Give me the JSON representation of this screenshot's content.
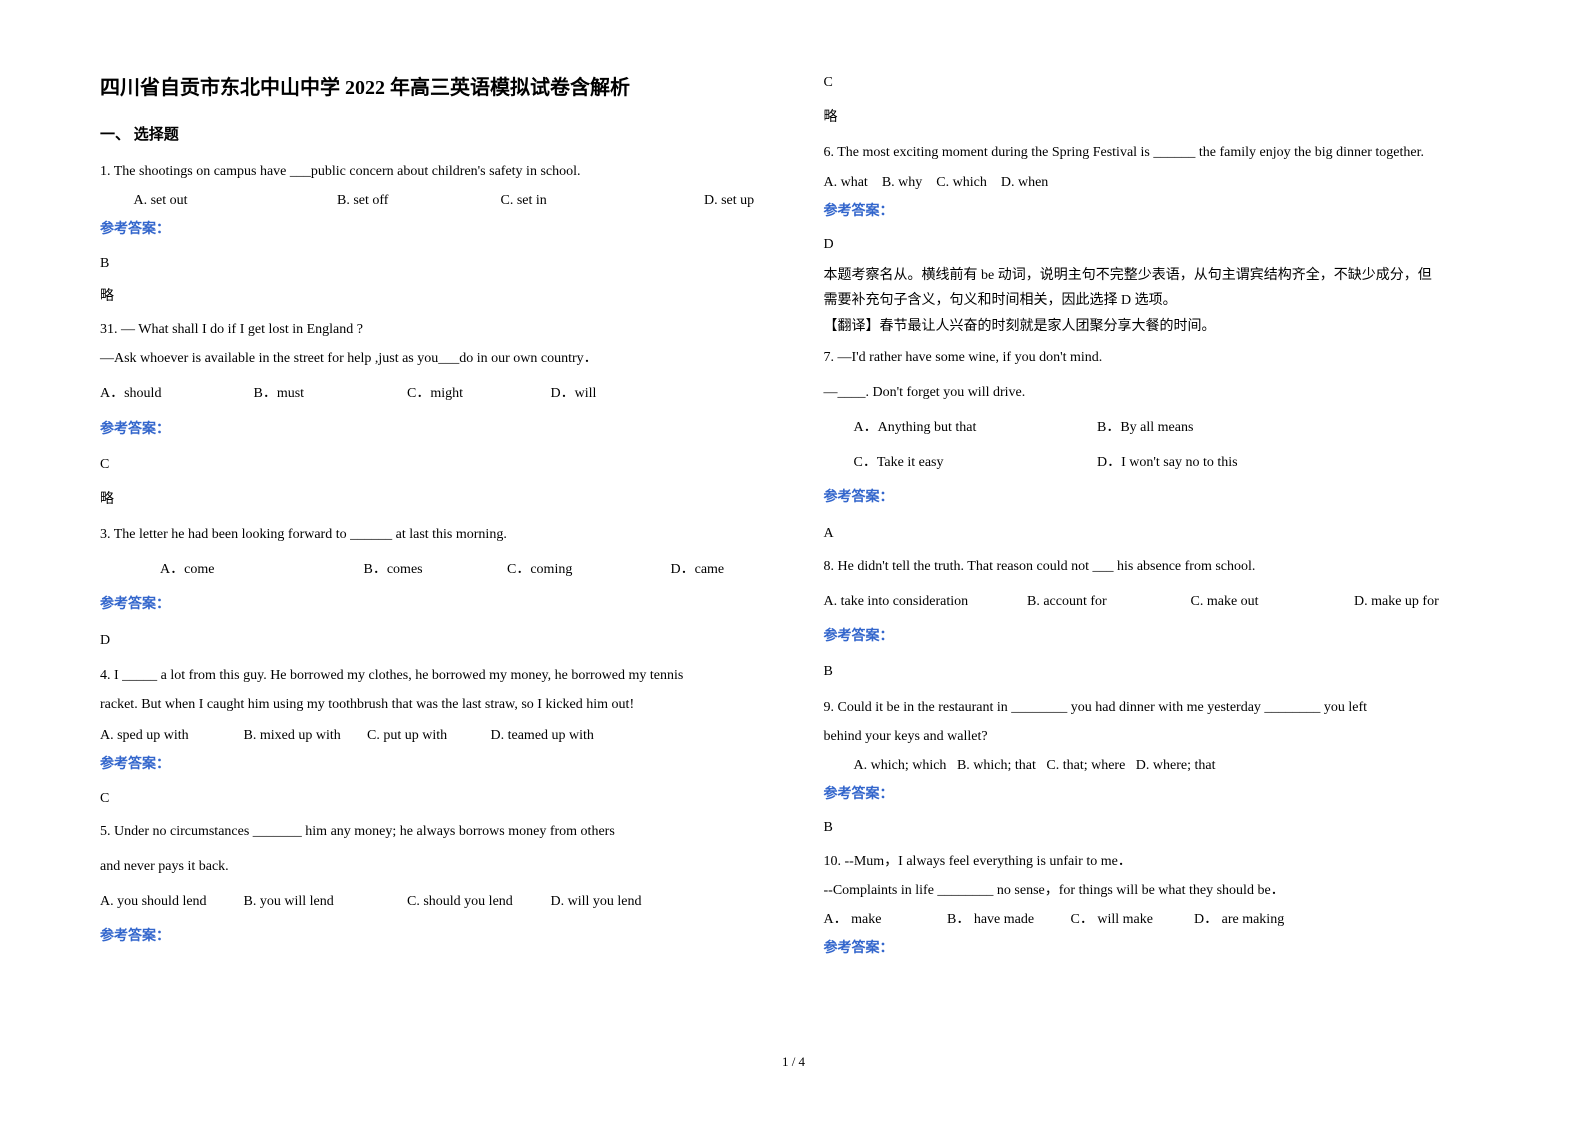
{
  "title": "四川省自贡市东北中山中学 2022 年高三英语模拟试卷含解析",
  "section_header": "一、 选择题",
  "footer": "1 / 4",
  "answer_label": "参考答案：",
  "left": {
    "q1": {
      "stem": "1. The shootings on campus have ___public concern about children's safety in school.",
      "opts": {
        "a": "A. set out",
        "b": "B. set off",
        "c": "C. set in",
        "d": "D. set up"
      },
      "ans": "B",
      "exp": "略"
    },
    "q2": {
      "num": "31.",
      "line1": "— What shall I do if I get lost in England ?",
      "line2": "—Ask whoever is available in the street for help ,just as you___do in our own country．",
      "opts": {
        "a": "A．should",
        "b": "B．must",
        "c": "C．might",
        "d": "D．will"
      },
      "ans": "C",
      "exp": "略"
    },
    "q3": {
      "stem": "3. The letter he had been looking forward to ______ at last this morning.",
      "opts": {
        "a": "A．come",
        "b": "B．comes",
        "c": "C．coming",
        "d": "D．came"
      },
      "ans": "D"
    },
    "q4": {
      "line1": "4. I _____ a lot from this guy. He borrowed my clothes, he borrowed my money, he borrowed my tennis",
      "line2": "racket. But when I caught him using my toothbrush that was the last straw, so I kicked him out!",
      "opts": {
        "a": "A. sped up with",
        "b": "B. mixed up with",
        "c": "C. put up with",
        "d": "D. teamed up with"
      },
      "ans": "C"
    },
    "q5": {
      "line1": "5. Under no circumstances _______ him any money; he always borrows money from others",
      "line2": "and never pays it back.",
      "opts": {
        "a": "A. you should lend",
        "b": "B. you will lend",
        "c": "C. should you lend",
        "d": "D. will you lend"
      }
    }
  },
  "right": {
    "top_ans": "C",
    "top_exp": "略",
    "q6": {
      "stem": "6. The most exciting moment during the Spring Festival is ______ the family enjoy the big dinner together.",
      "opts": {
        "a": "A. what",
        "b": "B. why",
        "c": "C. which",
        "d": "D. when"
      },
      "ans": "D",
      "exp1": "本题考察名从。横线前有 be 动词，说明主句不完整少表语，从句主谓宾结构齐全，不缺少成分，但",
      "exp2": "需要补充句子含义，句义和时间相关，因此选择 D 选项。",
      "exp3": "【翻译】春节最让人兴奋的时刻就是家人团聚分享大餐的时间。"
    },
    "q7": {
      "line1": "7. —I'd rather have some wine, if you don't mind.",
      "line2": "—____. Don't forget you will drive.",
      "opts": {
        "a": "A．Anything but that",
        "b": "B．By all means",
        "c": "C．Take it easy",
        "d": "D．I won't say no to this"
      },
      "ans": "A"
    },
    "q8": {
      "stem": "8. He didn't tell the truth. That reason could not ___ his absence from school.",
      "opts": {
        "a": "A. take into consideration",
        "b": "B. account for",
        "c": "C. make out",
        "d": "D. make up for"
      },
      "ans": "B"
    },
    "q9": {
      "line1": "9. Could it be in the restaurant in ________ you had dinner with me yesterday ________ you left",
      "line2": "behind your keys and wallet?",
      "opts": {
        "a": "A. which; which",
        "b": "B. which; that",
        "c": "C. that; where",
        "d": "D. where; that"
      },
      "ans": "B"
    },
    "q10": {
      "line1": "10. --Mum，I always feel everything is unfair to me．",
      "line2": "--Complaints in life ________ no sense，for things will be what they should be．",
      "opts": {
        "a": "A． make",
        "b": "B． have made",
        "c": "C． will make",
        "d": "D． are making"
      }
    }
  }
}
